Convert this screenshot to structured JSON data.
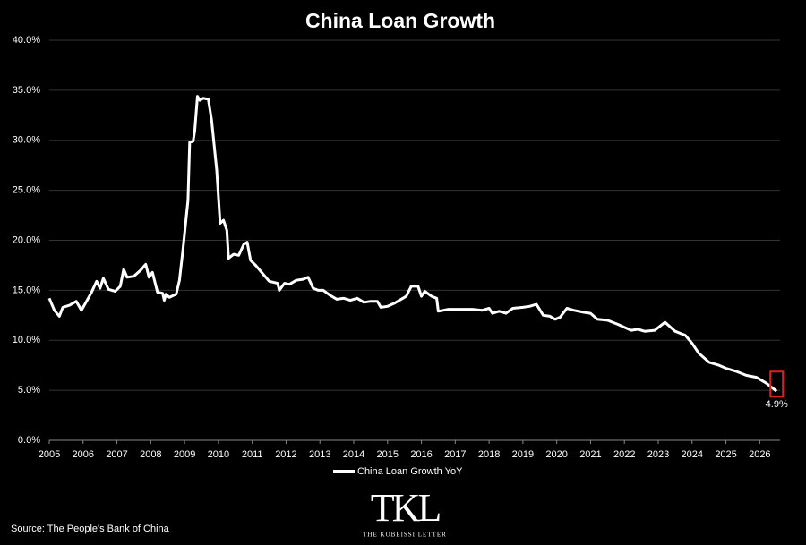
{
  "chart_data": {
    "type": "line",
    "title": "China Loan Growth",
    "x": [
      2005.0,
      2005.15,
      2005.3,
      2005.4,
      2005.6,
      2005.8,
      2005.95,
      2006.1,
      2006.25,
      2006.4,
      2006.5,
      2006.6,
      2006.75,
      2006.95,
      2007.1,
      2007.2,
      2007.3,
      2007.5,
      2007.7,
      2007.85,
      2007.95,
      2008.05,
      2008.2,
      2008.35,
      2008.4,
      2008.45,
      2008.55,
      2008.75,
      2008.85,
      2008.95,
      2009.1,
      2009.15,
      2009.25,
      2009.3,
      2009.38,
      2009.45,
      2009.55,
      2009.7,
      2009.8,
      2009.95,
      2010.05,
      2010.15,
      2010.25,
      2010.3,
      2010.45,
      2010.6,
      2010.75,
      2010.85,
      2010.95,
      2011.1,
      2011.3,
      2011.5,
      2011.75,
      2011.8,
      2011.95,
      2012.1,
      2012.3,
      2012.5,
      2012.65,
      2012.8,
      2012.95,
      2013.1,
      2013.3,
      2013.5,
      2013.7,
      2013.9,
      2014.1,
      2014.3,
      2014.5,
      2014.7,
      2014.8,
      2015.0,
      2015.2,
      2015.4,
      2015.55,
      2015.7,
      2015.9,
      2016.0,
      2016.1,
      2016.3,
      2016.45,
      2016.5,
      2016.8,
      2017.2,
      2017.5,
      2017.8,
      2018.0,
      2018.1,
      2018.3,
      2018.5,
      2018.7,
      2019.0,
      2019.2,
      2019.4,
      2019.6,
      2019.8,
      2019.95,
      2020.1,
      2020.3,
      2020.5,
      2020.8,
      2021.0,
      2021.2,
      2021.5,
      2021.8,
      2022.0,
      2022.2,
      2022.4,
      2022.6,
      2022.9,
      2023.2,
      2023.5,
      2023.8,
      2024.0,
      2024.2,
      2024.5,
      2024.8,
      2025.0,
      2025.3,
      2025.6,
      2025.9,
      2026.2,
      2026.5
    ],
    "series": [
      {
        "name": "China Loan Growth YoY",
        "color": "#ffffff",
        "values": [
          14.2,
          13.0,
          12.4,
          13.3,
          13.5,
          13.9,
          13.0,
          13.9,
          14.8,
          15.9,
          15.2,
          16.2,
          15.1,
          14.9,
          15.4,
          17.1,
          16.3,
          16.4,
          17.0,
          17.6,
          16.3,
          16.8,
          14.8,
          14.7,
          14.0,
          14.6,
          14.3,
          14.6,
          16.0,
          19.0,
          24.0,
          29.8,
          29.9,
          30.9,
          34.4,
          34.0,
          34.2,
          34.1,
          32.0,
          27.0,
          21.7,
          22.0,
          21.0,
          18.2,
          18.6,
          18.5,
          19.6,
          19.8,
          18.0,
          17.5,
          16.7,
          15.9,
          15.7,
          15.0,
          15.7,
          15.6,
          16.0,
          16.1,
          16.3,
          15.2,
          15.0,
          15.0,
          14.5,
          14.1,
          14.2,
          14.0,
          14.2,
          13.8,
          13.9,
          13.9,
          13.3,
          13.4,
          13.7,
          14.1,
          14.4,
          15.4,
          15.4,
          14.4,
          14.9,
          14.4,
          14.2,
          12.9,
          13.1,
          13.1,
          13.1,
          13.0,
          13.2,
          12.7,
          12.9,
          12.7,
          13.2,
          13.3,
          13.4,
          13.6,
          12.5,
          12.4,
          12.1,
          12.3,
          13.2,
          13.0,
          12.8,
          12.7,
          12.1,
          12.0,
          11.6,
          11.3,
          11.0,
          11.1,
          10.9,
          11.0,
          11.8,
          10.9,
          10.5,
          9.7,
          8.7,
          7.8,
          7.5,
          7.2,
          6.9,
          6.5,
          6.3,
          5.7,
          4.9
        ]
      }
    ],
    "xlim": [
      2005,
      2026.6
    ],
    "xticks": [
      2005,
      2006,
      2007,
      2008,
      2009,
      2010,
      2011,
      2012,
      2013,
      2014,
      2015,
      2016,
      2017,
      2018,
      2019,
      2020,
      2021,
      2022,
      2023,
      2024,
      2025,
      2026
    ],
    "ylim": [
      0,
      40
    ],
    "yticks": [
      {
        "value": 0,
        "label": "0.0%"
      },
      {
        "value": 5,
        "label": "5.0%"
      },
      {
        "value": 10,
        "label": "10.0%"
      },
      {
        "value": 15,
        "label": "15.0%"
      },
      {
        "value": 20,
        "label": "20.0%"
      },
      {
        "value": 25,
        "label": "25.0%"
      },
      {
        "value": 30,
        "label": "30.0%"
      },
      {
        "value": 35,
        "label": "35.0%"
      },
      {
        "value": 40,
        "label": "40.0%"
      }
    ],
    "grid": true,
    "annotation": {
      "x": 2026.5,
      "value": 4.9,
      "label": "4.9%",
      "color": "#e0201b"
    },
    "source": "Source: The People's Bank of China",
    "logo": "TKL",
    "logo_subtitle": "THE KOBEISSI LETTER"
  }
}
